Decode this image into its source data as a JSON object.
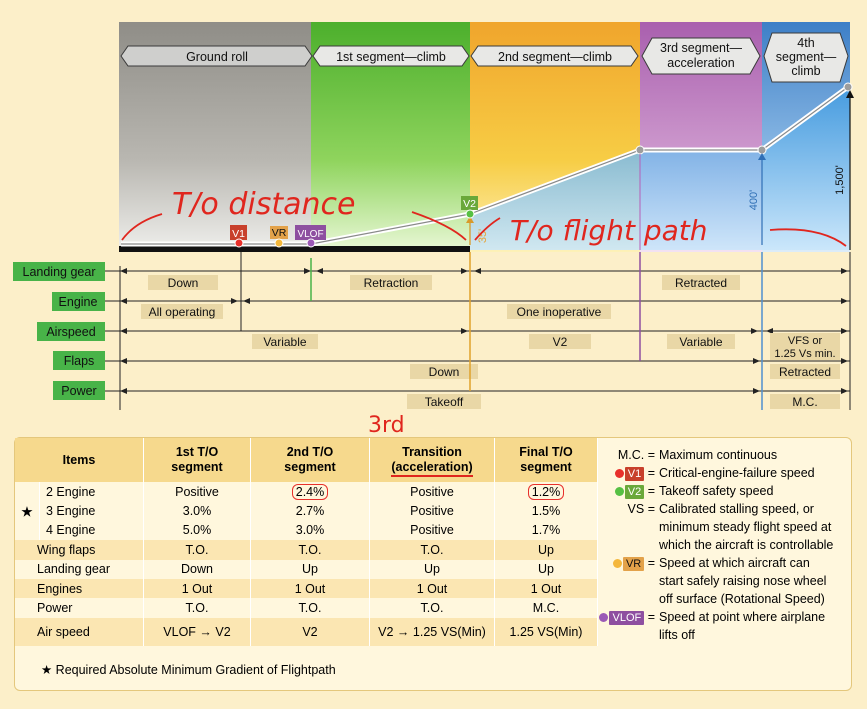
{
  "segments": [
    {
      "label": "Ground roll"
    },
    {
      "label": "1st segment—climb"
    },
    {
      "label": "2nd segment—climb"
    },
    {
      "label_lines": [
        "3rd segment—",
        "acceleration"
      ]
    },
    {
      "label_lines": [
        "4th",
        "segment—",
        "climb"
      ]
    }
  ],
  "speed_markers": {
    "v1": "V1",
    "vr": "VR",
    "vlof": "VLOF",
    "v2": "V2"
  },
  "heights": {
    "h35": "35'",
    "h400": "400'",
    "h1500": "1,500'"
  },
  "config_rows": [
    {
      "name": "Landing gear",
      "values": [
        "Down",
        "Retraction",
        "Retracted"
      ]
    },
    {
      "name": "Engine",
      "values": [
        "All operating",
        "One inoperative"
      ]
    },
    {
      "name": "Airspeed",
      "values": [
        "Variable",
        "V2",
        "Variable",
        "VFS or",
        "1.25 Vs min."
      ]
    },
    {
      "name": "Flaps",
      "values": [
        "Down",
        "Retracted"
      ]
    },
    {
      "name": "Power",
      "values": [
        "Takeoff",
        "M.C."
      ]
    }
  ],
  "annotations": {
    "to_distance": "T/o distance",
    "to_flight_path": "T/o flight path",
    "third": "3rd"
  },
  "table": {
    "headers": [
      "Items",
      "1st T/O segment",
      "2nd T/O segment",
      "Transition (acceleration)",
      "Final T/O segment"
    ],
    "header_lines": [
      [
        "Items"
      ],
      [
        "1st T/O",
        "segment"
      ],
      [
        "2nd T/O",
        "segment"
      ],
      [
        "Transition",
        "(acceleration)"
      ],
      [
        "Final T/O",
        "segment"
      ]
    ],
    "rows": [
      {
        "star": "",
        "item": "2 Engine",
        "cells": [
          "Positive",
          "2.4%",
          "Positive",
          "1.2%"
        ]
      },
      {
        "star": "★",
        "item": "3 Engine",
        "cells": [
          "3.0%",
          "2.7%",
          "Positive",
          "1.5%"
        ]
      },
      {
        "star": "",
        "item": "4 Engine",
        "cells": [
          "5.0%",
          "3.0%",
          "Positive",
          "1.7%"
        ]
      },
      {
        "star": "",
        "item": "Wing flaps",
        "cells": [
          "T.O.",
          "T.O.",
          "T.O.",
          "Up"
        ]
      },
      {
        "star": "",
        "item": "Landing gear",
        "cells": [
          "Down",
          "Up",
          "Up",
          "Up"
        ]
      },
      {
        "star": "",
        "item": "Engines",
        "cells": [
          "1 Out",
          "1 Out",
          "1 Out",
          "1 Out"
        ]
      },
      {
        "star": "",
        "item": "Power",
        "cells": [
          "T.O.",
          "T.O.",
          "T.O.",
          "M.C."
        ]
      },
      {
        "star": "",
        "item": "Air speed",
        "cells": [
          "VLOF → V2",
          "V2",
          "V2 → 1.25 VS(Min)",
          "1.25 VS(Min)"
        ]
      }
    ]
  },
  "legend": [
    {
      "key": "M.C.",
      "text": [
        "Maximum continuous"
      ]
    },
    {
      "key": "V1",
      "text": [
        "Critical-engine-failure speed"
      ]
    },
    {
      "key": "V2",
      "text": [
        "Takeoff safety speed"
      ]
    },
    {
      "key": "VS",
      "text": [
        "Calibrated stalling speed, or",
        "minimum steady flight speed at",
        "which the aircraft is controllable"
      ]
    },
    {
      "key": "VR",
      "text": [
        "Speed at which aircraft can",
        "start safely raising nose wheel",
        "off surface (Rotational Speed)"
      ]
    },
    {
      "key": "VLOF",
      "text": [
        "Speed at point where airplane",
        "lifts off"
      ]
    }
  ],
  "footnote": "★ Required Absolute Minimum Gradient of Flightpath",
  "colors": {
    "ground": "#a5a49f",
    "seg1": "#6fc43c",
    "seg2": "#f2b52a",
    "seg3": "#b776b8",
    "seg4": "#4f8fd0",
    "v1": "#c8402b",
    "vr": "#e09b2c",
    "vlof": "#8e4fa0",
    "v2": "#4fb34a",
    "row_label": "#48b348",
    "annotation": "#e0261e"
  }
}
